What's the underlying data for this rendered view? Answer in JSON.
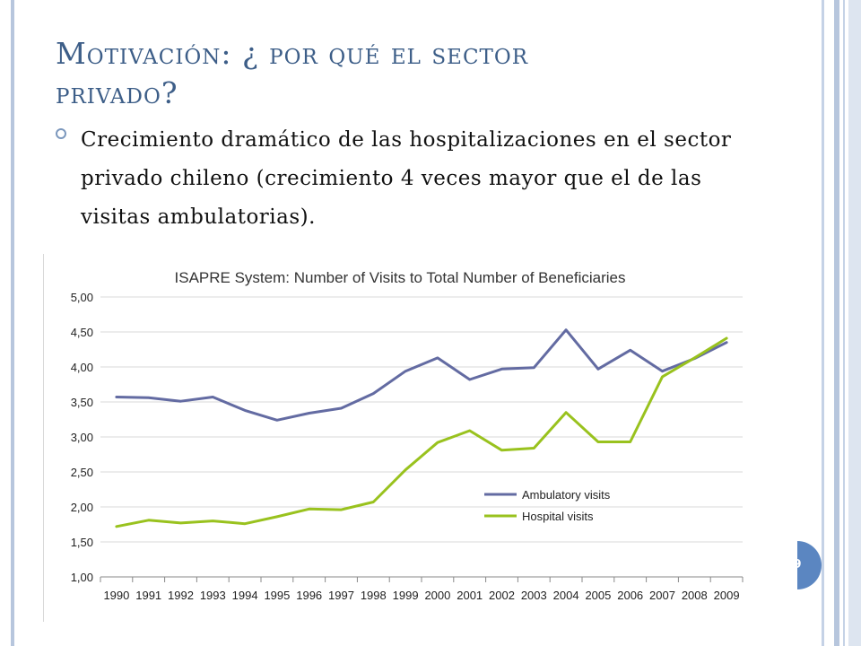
{
  "slide": {
    "title_line1": "Motivación: ¿ por qué el sector",
    "title_line2": "privado?",
    "bullet": "Crecimiento dramático de las hospitalizaciones en el sector privado chileno (crecimiento 4 veces mayor que el de las visitas ambulatorias).",
    "page_number": "9"
  },
  "colors": {
    "title": "#3d5e88",
    "ambulatory": "#636ba2",
    "hospital": "#99c21e",
    "page_badge": "#5b86c1"
  },
  "chart_data": {
    "type": "line",
    "title": "ISAPRE System: Number of Visits to Total Number of Beneficiaries",
    "categories": [
      "1990",
      "1991",
      "1992",
      "1993",
      "1994",
      "1995",
      "1996",
      "1997",
      "1998",
      "1999",
      "2000",
      "2001",
      "2002",
      "2003",
      "2004",
      "2005",
      "2006",
      "2007",
      "2008",
      "2009"
    ],
    "series": [
      {
        "name": "Ambulatory visits",
        "values": [
          3.57,
          3.56,
          3.51,
          3.57,
          3.38,
          3.24,
          3.34,
          3.41,
          3.62,
          3.94,
          4.13,
          3.82,
          3.97,
          3.99,
          4.53,
          3.97,
          4.24,
          3.94,
          4.12,
          4.35
        ]
      },
      {
        "name": "Hospital visits",
        "values": [
          1.72,
          1.81,
          1.77,
          1.8,
          1.76,
          1.86,
          1.97,
          1.96,
          2.07,
          2.53,
          2.92,
          3.09,
          2.81,
          2.84,
          3.35,
          2.93,
          2.93,
          3.86,
          4.13,
          4.41
        ]
      }
    ],
    "y_ticks": [
      "1,00",
      "1,50",
      "2,00",
      "2,50",
      "3,00",
      "3,50",
      "4,00",
      "4,50",
      "5,00"
    ],
    "ylim": [
      1,
      5
    ],
    "grid": true,
    "legend_position": "lower-right inside plot"
  }
}
